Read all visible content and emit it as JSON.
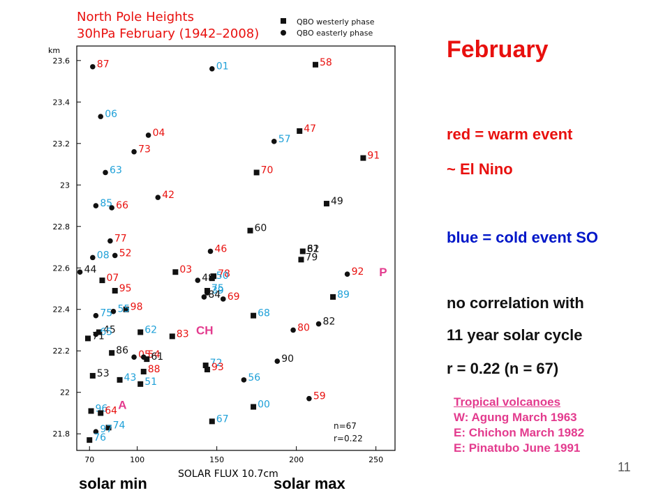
{
  "colors": {
    "red": "#e8100e",
    "blue": "#1ea0d8",
    "black": "#111111",
    "pink": "#e33b8e",
    "blue_text": "#0016c8"
  },
  "side": {
    "title": "February",
    "red_line1": "red = warm event",
    "red_line2": "~ El Nino",
    "blue_line": "blue = cold event SO",
    "corr1": "no correlation with",
    "corr2": "11 year solar cycle",
    "corr3": "r = 0.22 (n = 67)"
  },
  "volcanoes": {
    "title": "Tropical volcanoes",
    "lines": [
      "W: Agung March 1963",
      "E: Chichon March 1982",
      "E: Pinatubo June 1991"
    ]
  },
  "footer": {
    "solar_min": "solar min",
    "solar_max": "solar max"
  },
  "page_number": "11",
  "chart_data": {
    "type": "scatter",
    "title_line1": "North Pole Heights",
    "title_line2": "30hPa February (1942–2008)",
    "xlabel": "SOLAR FLUX 10.7cm",
    "ylabel": "km",
    "xlim": [
      62,
      262
    ],
    "ylim": [
      21.72,
      23.67
    ],
    "xticks": [
      70,
      100,
      150,
      200,
      250
    ],
    "yticks": [
      21.8,
      22,
      22.2,
      22.4,
      22.6,
      22.8,
      23,
      23.2,
      23.4,
      23.6
    ],
    "ytick_labels": [
      "21.8",
      "22",
      "22.2",
      "22.4",
      "22.6",
      "22.8",
      "23",
      "23.2",
      "23.4",
      "23.6"
    ],
    "legend": [
      {
        "marker": "square",
        "label": "QBO westerly phase"
      },
      {
        "marker": "circle",
        "label": "QBO easterly phase"
      }
    ],
    "stats": {
      "n": "n=67",
      "r": "r=0.22"
    },
    "annotations": [
      {
        "text": "P",
        "x": 252,
        "y": 22.56
      },
      {
        "text": "CH",
        "x": 137,
        "y": 22.28
      },
      {
        "text": "A",
        "x": 88,
        "y": 21.92
      }
    ],
    "points": [
      {
        "label": "87",
        "x": 72,
        "y": 23.57,
        "marker": "circle",
        "color": "red"
      },
      {
        "label": "01",
        "x": 147,
        "y": 23.56,
        "marker": "circle",
        "color": "blue"
      },
      {
        "label": "58",
        "x": 212,
        "y": 23.58,
        "marker": "square",
        "color": "red"
      },
      {
        "label": "06",
        "x": 77,
        "y": 23.33,
        "marker": "circle",
        "color": "blue"
      },
      {
        "label": "04",
        "x": 107,
        "y": 23.24,
        "marker": "circle",
        "color": "red"
      },
      {
        "label": "47",
        "x": 202,
        "y": 23.26,
        "marker": "square",
        "color": "red"
      },
      {
        "label": "57",
        "x": 186,
        "y": 23.21,
        "marker": "circle",
        "color": "blue"
      },
      {
        "label": "73",
        "x": 98,
        "y": 23.16,
        "marker": "circle",
        "color": "red"
      },
      {
        "label": "91",
        "x": 242,
        "y": 23.13,
        "marker": "square",
        "color": "red"
      },
      {
        "label": "63",
        "x": 80,
        "y": 23.06,
        "marker": "circle",
        "color": "blue"
      },
      {
        "label": "70",
        "x": 175,
        "y": 23.06,
        "marker": "square",
        "color": "red"
      },
      {
        "label": "42",
        "x": 113,
        "y": 22.94,
        "marker": "circle",
        "color": "red"
      },
      {
        "label": "49",
        "x": 219,
        "y": 22.91,
        "marker": "square",
        "color": "black"
      },
      {
        "label": "85",
        "x": 74,
        "y": 22.9,
        "marker": "circle",
        "color": "blue"
      },
      {
        "label": "66",
        "x": 84,
        "y": 22.89,
        "marker": "circle",
        "color": "red"
      },
      {
        "label": "60",
        "x": 171,
        "y": 22.78,
        "marker": "square",
        "color": "black"
      },
      {
        "label": "77",
        "x": 83,
        "y": 22.73,
        "marker": "circle",
        "color": "red"
      },
      {
        "label": "46",
        "x": 146,
        "y": 22.68,
        "marker": "circle",
        "color": "red"
      },
      {
        "label": "52",
        "x": 86,
        "y": 22.66,
        "marker": "circle",
        "color": "red"
      },
      {
        "label": "08",
        "x": 72,
        "y": 22.65,
        "marker": "circle",
        "color": "blue"
      },
      {
        "label": "62",
        "x": 204,
        "y": 22.68,
        "marker": "square",
        "color": "black"
      },
      {
        "label": "81",
        "x": 204,
        "y": 22.68,
        "marker": "circle",
        "color": "black"
      },
      {
        "label": "79",
        "x": 203,
        "y": 22.64,
        "marker": "square",
        "color": "black"
      },
      {
        "label": "44",
        "x": 64,
        "y": 22.58,
        "marker": "circle",
        "color": "black"
      },
      {
        "label": "92",
        "x": 232,
        "y": 22.57,
        "marker": "circle",
        "color": "red"
      },
      {
        "label": "03",
        "x": 124,
        "y": 22.58,
        "marker": "square",
        "color": "red"
      },
      {
        "label": "48",
        "x": 138,
        "y": 22.54,
        "marker": "circle",
        "color": "black"
      },
      {
        "label": "78",
        "x": 148,
        "y": 22.56,
        "marker": "square",
        "color": "red"
      },
      {
        "label": "50",
        "x": 147,
        "y": 22.55,
        "marker": "square",
        "color": "blue"
      },
      {
        "label": "07",
        "x": 78,
        "y": 22.54,
        "marker": "square",
        "color": "red"
      },
      {
        "label": "95",
        "x": 86,
        "y": 22.49,
        "marker": "square",
        "color": "red"
      },
      {
        "label": "75",
        "x": 144,
        "y": 22.49,
        "marker": "square",
        "color": "blue"
      },
      {
        "label": "39",
        "x": 144,
        "y": 22.48,
        "marker": "circle",
        "color": "blue"
      },
      {
        "label": "69",
        "x": 154,
        "y": 22.45,
        "marker": "circle",
        "color": "red"
      },
      {
        "label": "84",
        "x": 142,
        "y": 22.46,
        "marker": "circle",
        "color": "black"
      },
      {
        "label": "89",
        "x": 223,
        "y": 22.46,
        "marker": "square",
        "color": "blue"
      },
      {
        "label": "98",
        "x": 93,
        "y": 22.4,
        "marker": "square",
        "color": "red"
      },
      {
        "label": "55",
        "x": 85,
        "y": 22.39,
        "marker": "circle",
        "color": "blue"
      },
      {
        "label": "75",
        "x": 74,
        "y": 22.37,
        "marker": "circle",
        "color": "blue"
      },
      {
        "label": "68",
        "x": 173,
        "y": 22.37,
        "marker": "square",
        "color": "blue"
      },
      {
        "label": "82",
        "x": 214,
        "y": 22.33,
        "marker": "circle",
        "color": "black"
      },
      {
        "label": "80",
        "x": 198,
        "y": 22.3,
        "marker": "circle",
        "color": "red"
      },
      {
        "label": "45",
        "x": 76,
        "y": 22.29,
        "marker": "square",
        "color": "black"
      },
      {
        "label": "65",
        "x": 74,
        "y": 22.28,
        "marker": "circle",
        "color": "blue"
      },
      {
        "label": "62",
        "x": 102,
        "y": 22.29,
        "marker": "square",
        "color": "blue"
      },
      {
        "label": "83",
        "x": 122,
        "y": 22.27,
        "marker": "square",
        "color": "red"
      },
      {
        "label": "71",
        "x": 69,
        "y": 22.26,
        "marker": "square",
        "color": "black"
      },
      {
        "label": "86",
        "x": 84,
        "y": 22.19,
        "marker": "square",
        "color": "black"
      },
      {
        "label": "90",
        "x": 188,
        "y": 22.15,
        "marker": "circle",
        "color": "black"
      },
      {
        "label": "05",
        "x": 98,
        "y": 22.17,
        "marker": "circle",
        "color": "red"
      },
      {
        "label": "54",
        "x": 104,
        "y": 22.17,
        "marker": "circle",
        "color": "red"
      },
      {
        "label": "61",
        "x": 106,
        "y": 22.16,
        "marker": "square",
        "color": "black"
      },
      {
        "label": "72",
        "x": 143,
        "y": 22.13,
        "marker": "square",
        "color": "blue"
      },
      {
        "label": "93",
        "x": 144,
        "y": 22.11,
        "marker": "square",
        "color": "red"
      },
      {
        "label": "88",
        "x": 104,
        "y": 22.1,
        "marker": "square",
        "color": "red"
      },
      {
        "label": "53",
        "x": 72,
        "y": 22.08,
        "marker": "square",
        "color": "black"
      },
      {
        "label": "56",
        "x": 167,
        "y": 22.06,
        "marker": "circle",
        "color": "blue"
      },
      {
        "label": "43",
        "x": 89,
        "y": 22.06,
        "marker": "square",
        "color": "blue"
      },
      {
        "label": "51",
        "x": 102,
        "y": 22.04,
        "marker": "square",
        "color": "blue"
      },
      {
        "label": "59",
        "x": 208,
        "y": 21.97,
        "marker": "circle",
        "color": "red"
      },
      {
        "label": "00",
        "x": 173,
        "y": 21.93,
        "marker": "square",
        "color": "blue"
      },
      {
        "label": "96",
        "x": 71,
        "y": 21.91,
        "marker": "square",
        "color": "blue"
      },
      {
        "label": "64",
        "x": 77,
        "y": 21.9,
        "marker": "square",
        "color": "red"
      },
      {
        "label": "67",
        "x": 147,
        "y": 21.86,
        "marker": "square",
        "color": "blue"
      },
      {
        "label": "74",
        "x": 82,
        "y": 21.83,
        "marker": "square",
        "color": "blue"
      },
      {
        "label": "97",
        "x": 74,
        "y": 21.81,
        "marker": "circle",
        "color": "blue"
      },
      {
        "label": "76",
        "x": 70,
        "y": 21.77,
        "marker": "square",
        "color": "blue"
      }
    ]
  }
}
